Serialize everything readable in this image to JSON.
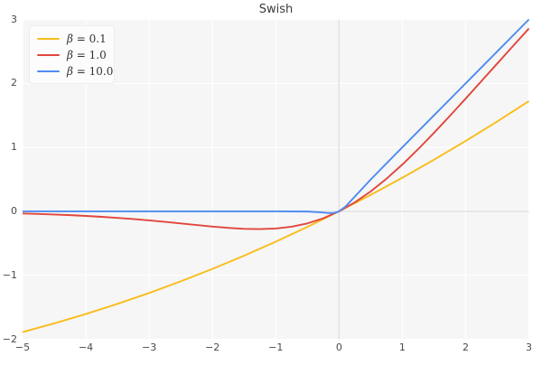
{
  "chart_data": {
    "type": "line",
    "title": "Swish",
    "xlabel": "",
    "ylabel": "",
    "xlim": [
      -5,
      3
    ],
    "ylim": [
      -2,
      3
    ],
    "xticks": [
      -5,
      -4,
      -3,
      -2,
      -1,
      0,
      1,
      2,
      3
    ],
    "xtick_labels": [
      "−5",
      "−4",
      "−3",
      "−2",
      "−1",
      "0",
      "1",
      "2",
      "3"
    ],
    "yticks": [
      -2,
      -1,
      0,
      1,
      2,
      3
    ],
    "ytick_labels": [
      "−2",
      "−1",
      "0",
      "1",
      "2",
      "3"
    ],
    "grid": true,
    "zero_lines": true,
    "legend_position": "upper left",
    "colors": {
      "plot_background": "#f6f6f6",
      "figure_background": "#ffffff",
      "gridline": "#ffffff",
      "zero_line": "#e0e0e0",
      "tick_text": "#4a4a4a",
      "title_text": "#3a3a3a"
    },
    "series": [
      {
        "name": "swish-beta-0.1",
        "label": "β = 0.1",
        "color": "#f9bc1b",
        "points": [
          [
            -5,
            -1.8877
          ],
          [
            -4.5,
            -1.7521
          ],
          [
            -4,
            -1.6053
          ],
          [
            -3.5,
            -1.4468
          ],
          [
            -3,
            -1.2767
          ],
          [
            -2.5,
            -1.0946
          ],
          [
            -2,
            -0.9003
          ],
          [
            -1.5,
            -0.6939
          ],
          [
            -1,
            -0.475
          ],
          [
            -0.5,
            -0.2437
          ],
          [
            0,
            0
          ],
          [
            0.5,
            0.2562
          ],
          [
            1,
            0.525
          ],
          [
            1.5,
            0.8061
          ],
          [
            2,
            1.0997
          ],
          [
            2.5,
            1.4054
          ],
          [
            3,
            1.7233
          ]
        ]
      },
      {
        "name": "swish-beta-1.0",
        "label": "β = 1.0",
        "color": "#e1463c",
        "points": [
          [
            -5,
            -0.0335
          ],
          [
            -4.75,
            -0.0407
          ],
          [
            -4.5,
            -0.0494
          ],
          [
            -4.25,
            -0.0598
          ],
          [
            -4,
            -0.0719
          ],
          [
            -3.75,
            -0.0862
          ],
          [
            -3.5,
            -0.1026
          ],
          [
            -3.25,
            -0.1213
          ],
          [
            -3,
            -0.1423
          ],
          [
            -2.75,
            -0.1652
          ],
          [
            -2.5,
            -0.1896
          ],
          [
            -2.25,
            -0.2145
          ],
          [
            -2,
            -0.2384
          ],
          [
            -1.75,
            -0.2591
          ],
          [
            -1.5,
            -0.2736
          ],
          [
            -1.25,
            -0.2784
          ],
          [
            -1,
            -0.2689
          ],
          [
            -0.75,
            -0.2406
          ],
          [
            -0.5,
            -0.1888
          ],
          [
            -0.25,
            -0.1095
          ],
          [
            0,
            0
          ],
          [
            0.25,
            0.1405
          ],
          [
            0.5,
            0.3112
          ],
          [
            0.75,
            0.5094
          ],
          [
            1,
            0.7311
          ],
          [
            1.25,
            0.9716
          ],
          [
            1.5,
            1.2264
          ],
          [
            1.75,
            1.4909
          ],
          [
            2,
            1.7616
          ],
          [
            2.25,
            2.0355
          ],
          [
            2.5,
            2.3104
          ],
          [
            2.75,
            2.5848
          ],
          [
            3,
            2.8577
          ]
        ]
      },
      {
        "name": "swish-beta-10.0",
        "label": "β = 10.0",
        "color": "#4f8bf0",
        "points": [
          [
            -5,
            0
          ],
          [
            -4,
            0
          ],
          [
            -3,
            -0.0001
          ],
          [
            -2,
            -0.0004
          ],
          [
            -1,
            -0.0005
          ],
          [
            -0.5,
            -0.0033
          ],
          [
            -0.3,
            -0.0142
          ],
          [
            -0.2,
            -0.0238
          ],
          [
            -0.15,
            -0.0274
          ],
          [
            -0.1,
            -0.0269
          ],
          [
            -0.05,
            -0.0189
          ],
          [
            0,
            0
          ],
          [
            0.1,
            0.0731
          ],
          [
            0.25,
            0.231
          ],
          [
            0.5,
            0.4967
          ],
          [
            0.75,
            0.7496
          ],
          [
            1,
            1.0
          ],
          [
            1.5,
            1.5
          ],
          [
            2,
            2.0
          ],
          [
            2.5,
            2.5
          ],
          [
            3,
            3.0
          ]
        ]
      }
    ]
  }
}
